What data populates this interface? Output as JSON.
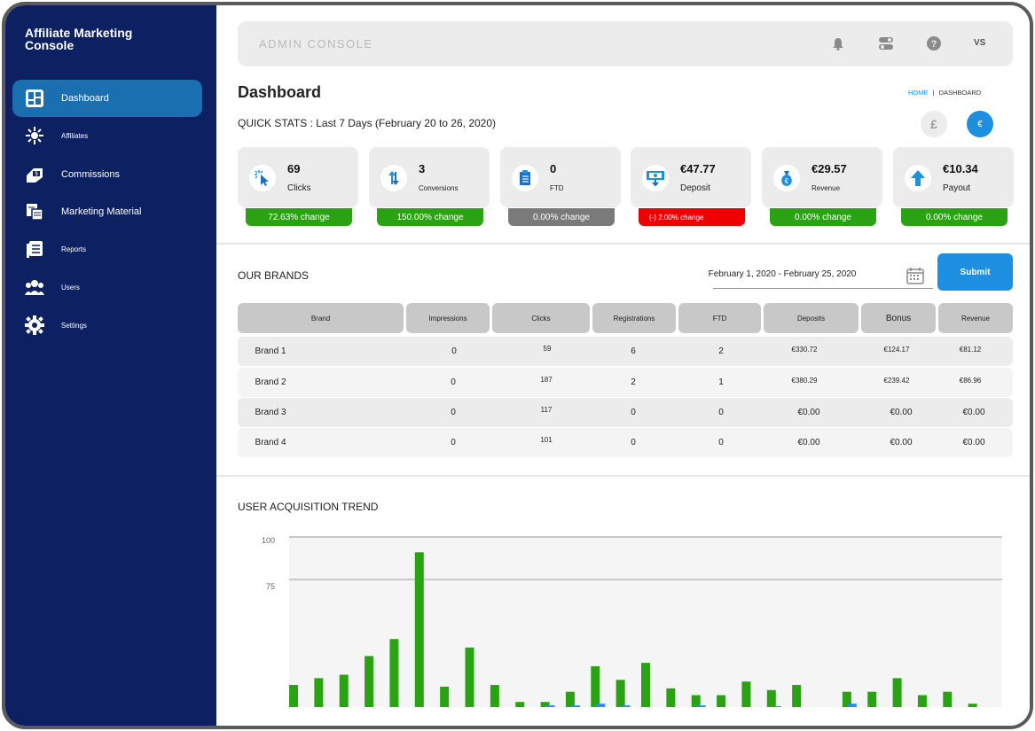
{
  "app": {
    "title": "Affiliate Marketing Console"
  },
  "sidebar": {
    "items": [
      {
        "label": "Dashboard",
        "icon": "dashboard-icon",
        "active": true
      },
      {
        "label": "Affiliates",
        "icon": "affiliates-icon"
      },
      {
        "label": "Commissions",
        "icon": "commissions-icon"
      },
      {
        "label": "Marketing Material",
        "icon": "marketing-material-icon"
      },
      {
        "label": "Reports",
        "icon": "reports-icon"
      },
      {
        "label": "Users",
        "icon": "users-icon"
      },
      {
        "label": "Settings",
        "icon": "gear-icon"
      }
    ]
  },
  "topbar": {
    "title": "ADMIN CONSOLE",
    "icons": [
      "bell-icon",
      "toggle-icon",
      "help-icon"
    ],
    "user_initials": "VS"
  },
  "page": {
    "title": "Dashboard",
    "breadcrumb": {
      "home": "HOME",
      "separator": "|",
      "current": "DASHBOARD"
    }
  },
  "quick_stats": {
    "title": "QUICK STATS : Last 7 Days (February 20 to 26, 2020)",
    "currencies": [
      {
        "symbol": "£",
        "selected": false
      },
      {
        "symbol": "€",
        "selected": true
      }
    ],
    "cards": [
      {
        "value": "69",
        "label": "Clicks",
        "icon": "cursor-click-icon",
        "change": "72.63% change",
        "change_color": "#2aa312"
      },
      {
        "value": "3",
        "label": "Conversions",
        "icon": "conversion-arrows-icon",
        "change": "150.00% change",
        "change_color": "#2aa312"
      },
      {
        "value": "0",
        "label": "FTD",
        "icon": "clipboard-icon",
        "change": "0.00% change",
        "change_color": "#7a7a7a"
      },
      {
        "value": "€47.77",
        "label": "Deposit",
        "icon": "deposit-icon",
        "change": "(-) 2.00% change",
        "change_color": "#ee0000"
      },
      {
        "value": "€29.57",
        "label": "Revenue",
        "icon": "money-bag-icon",
        "change": "0.00% change",
        "change_color": "#2aa312"
      },
      {
        "value": "€10.34",
        "label": "Payout",
        "icon": "arrow-up-icon",
        "change": "0.00% change",
        "change_color": "#2aa312"
      }
    ]
  },
  "brands": {
    "title": "OUR BRANDS",
    "date_range": "February 1, 2020 - February 25, 2020",
    "submit_label": "Submit",
    "columns": [
      "Brand",
      "Impressions",
      "Clicks",
      "Registrations",
      "FTD",
      "Deposits",
      "Bonus",
      "Revenue"
    ],
    "rows": [
      [
        "Brand 1",
        "0",
        "59",
        "6",
        "2",
        "€330.72",
        "€124.17",
        "€81.12"
      ],
      [
        "Brand 2",
        "0",
        "187",
        "2",
        "1",
        "€380.29",
        "€239.42",
        "€86.96"
      ],
      [
        "Brand 3",
        "0",
        "117",
        "0",
        "0",
        "€0.00",
        "€0.00",
        "€0.00"
      ],
      [
        "Brand 4",
        "0",
        "101",
        "0",
        "0",
        "€0.00",
        "€0.00",
        "€0.00"
      ]
    ]
  },
  "trend": {
    "title": "USER ACQUISITION TREND"
  },
  "chart_data": {
    "type": "bar",
    "title": "USER ACQUISITION TREND",
    "ylim": [
      0,
      100
    ],
    "yticks": [
      "100",
      "75"
    ],
    "grid": true,
    "colors": {
      "primary": "#2aa312",
      "secondary": "#2a8fe0"
    },
    "series": [
      {
        "values": [
          13,
          17,
          19,
          30,
          40,
          91,
          12,
          35,
          13,
          3,
          3,
          9,
          24,
          16,
          26,
          11,
          7,
          7,
          15,
          10,
          13,
          0,
          9,
          9,
          17,
          7,
          9,
          2
        ]
      },
      {
        "values": [
          0,
          0,
          0,
          0,
          0,
          0,
          0,
          0,
          0,
          0,
          1,
          1,
          2,
          1,
          0,
          0,
          1,
          0,
          0,
          0.5,
          0,
          0,
          2,
          0,
          0,
          0,
          0,
          0
        ]
      }
    ]
  },
  "colors": {
    "sidebar_bg": "#0d2061",
    "accent": "#1e8fe0",
    "active_nav": "#1a6fb0",
    "positive": "#2aa312",
    "negative": "#ee0000",
    "neutral": "#7a7a7a"
  }
}
